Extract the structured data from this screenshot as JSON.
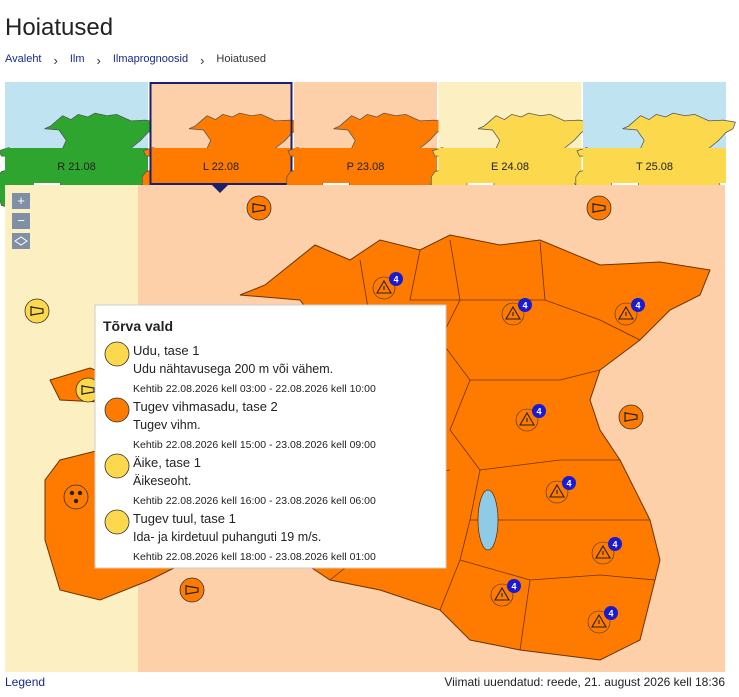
{
  "header": {
    "title": "Hoiatused"
  },
  "breadcrumb": [
    "Avaleht",
    "Ilm",
    "Ilmaprognoosid",
    "Hoiatused"
  ],
  "days": [
    {
      "label": "R 21.08",
      "color": "#2ea52e"
    },
    {
      "label": "L 22.08",
      "color": "#ff7b00"
    },
    {
      "label": "P 23.08",
      "color": "#ff7b00"
    },
    {
      "label": "E 24.08",
      "color": "#fbd84c"
    },
    {
      "label": "T 25.08",
      "color": "#fbd84c"
    }
  ],
  "map": {
    "zoom_in": "+",
    "zoom_out": "−",
    "badges": [
      4,
      4,
      4,
      4,
      4,
      4,
      4,
      4
    ]
  },
  "popup": {
    "title": "Tõrva vald",
    "warnings": [
      {
        "name": "Udu, tase 1",
        "text": "Udu nähtavusega 200 m või vähem.",
        "valid": "Kehtib 22.08.2026 kell 03:00 - 22.08.2026 kell 10:00"
      },
      {
        "name": "Tugev vihmasadu, tase 2",
        "text": "Tugev vihm.",
        "valid": "Kehtib 22.08.2026 kell 15:00 - 23.08.2026 kell 09:00"
      },
      {
        "name": "Äike, tase 1",
        "text": "Äikeseoht.",
        "valid": "Kehtib 22.08.2026 kell 16:00 - 23.08.2026 kell 06:00"
      },
      {
        "name": "Tugev tuul, tase 1",
        "text": "Ida- ja kirdetuul puhanguti 19 m/s.",
        "valid": "Kehtib 22.08.2026 kell 18:00 - 23.08.2026 kell 01:00"
      }
    ]
  },
  "footer": {
    "legend": "Legend",
    "updated": "Viimati uuendatud: reede, 21. august 2026 kell 18:36"
  }
}
